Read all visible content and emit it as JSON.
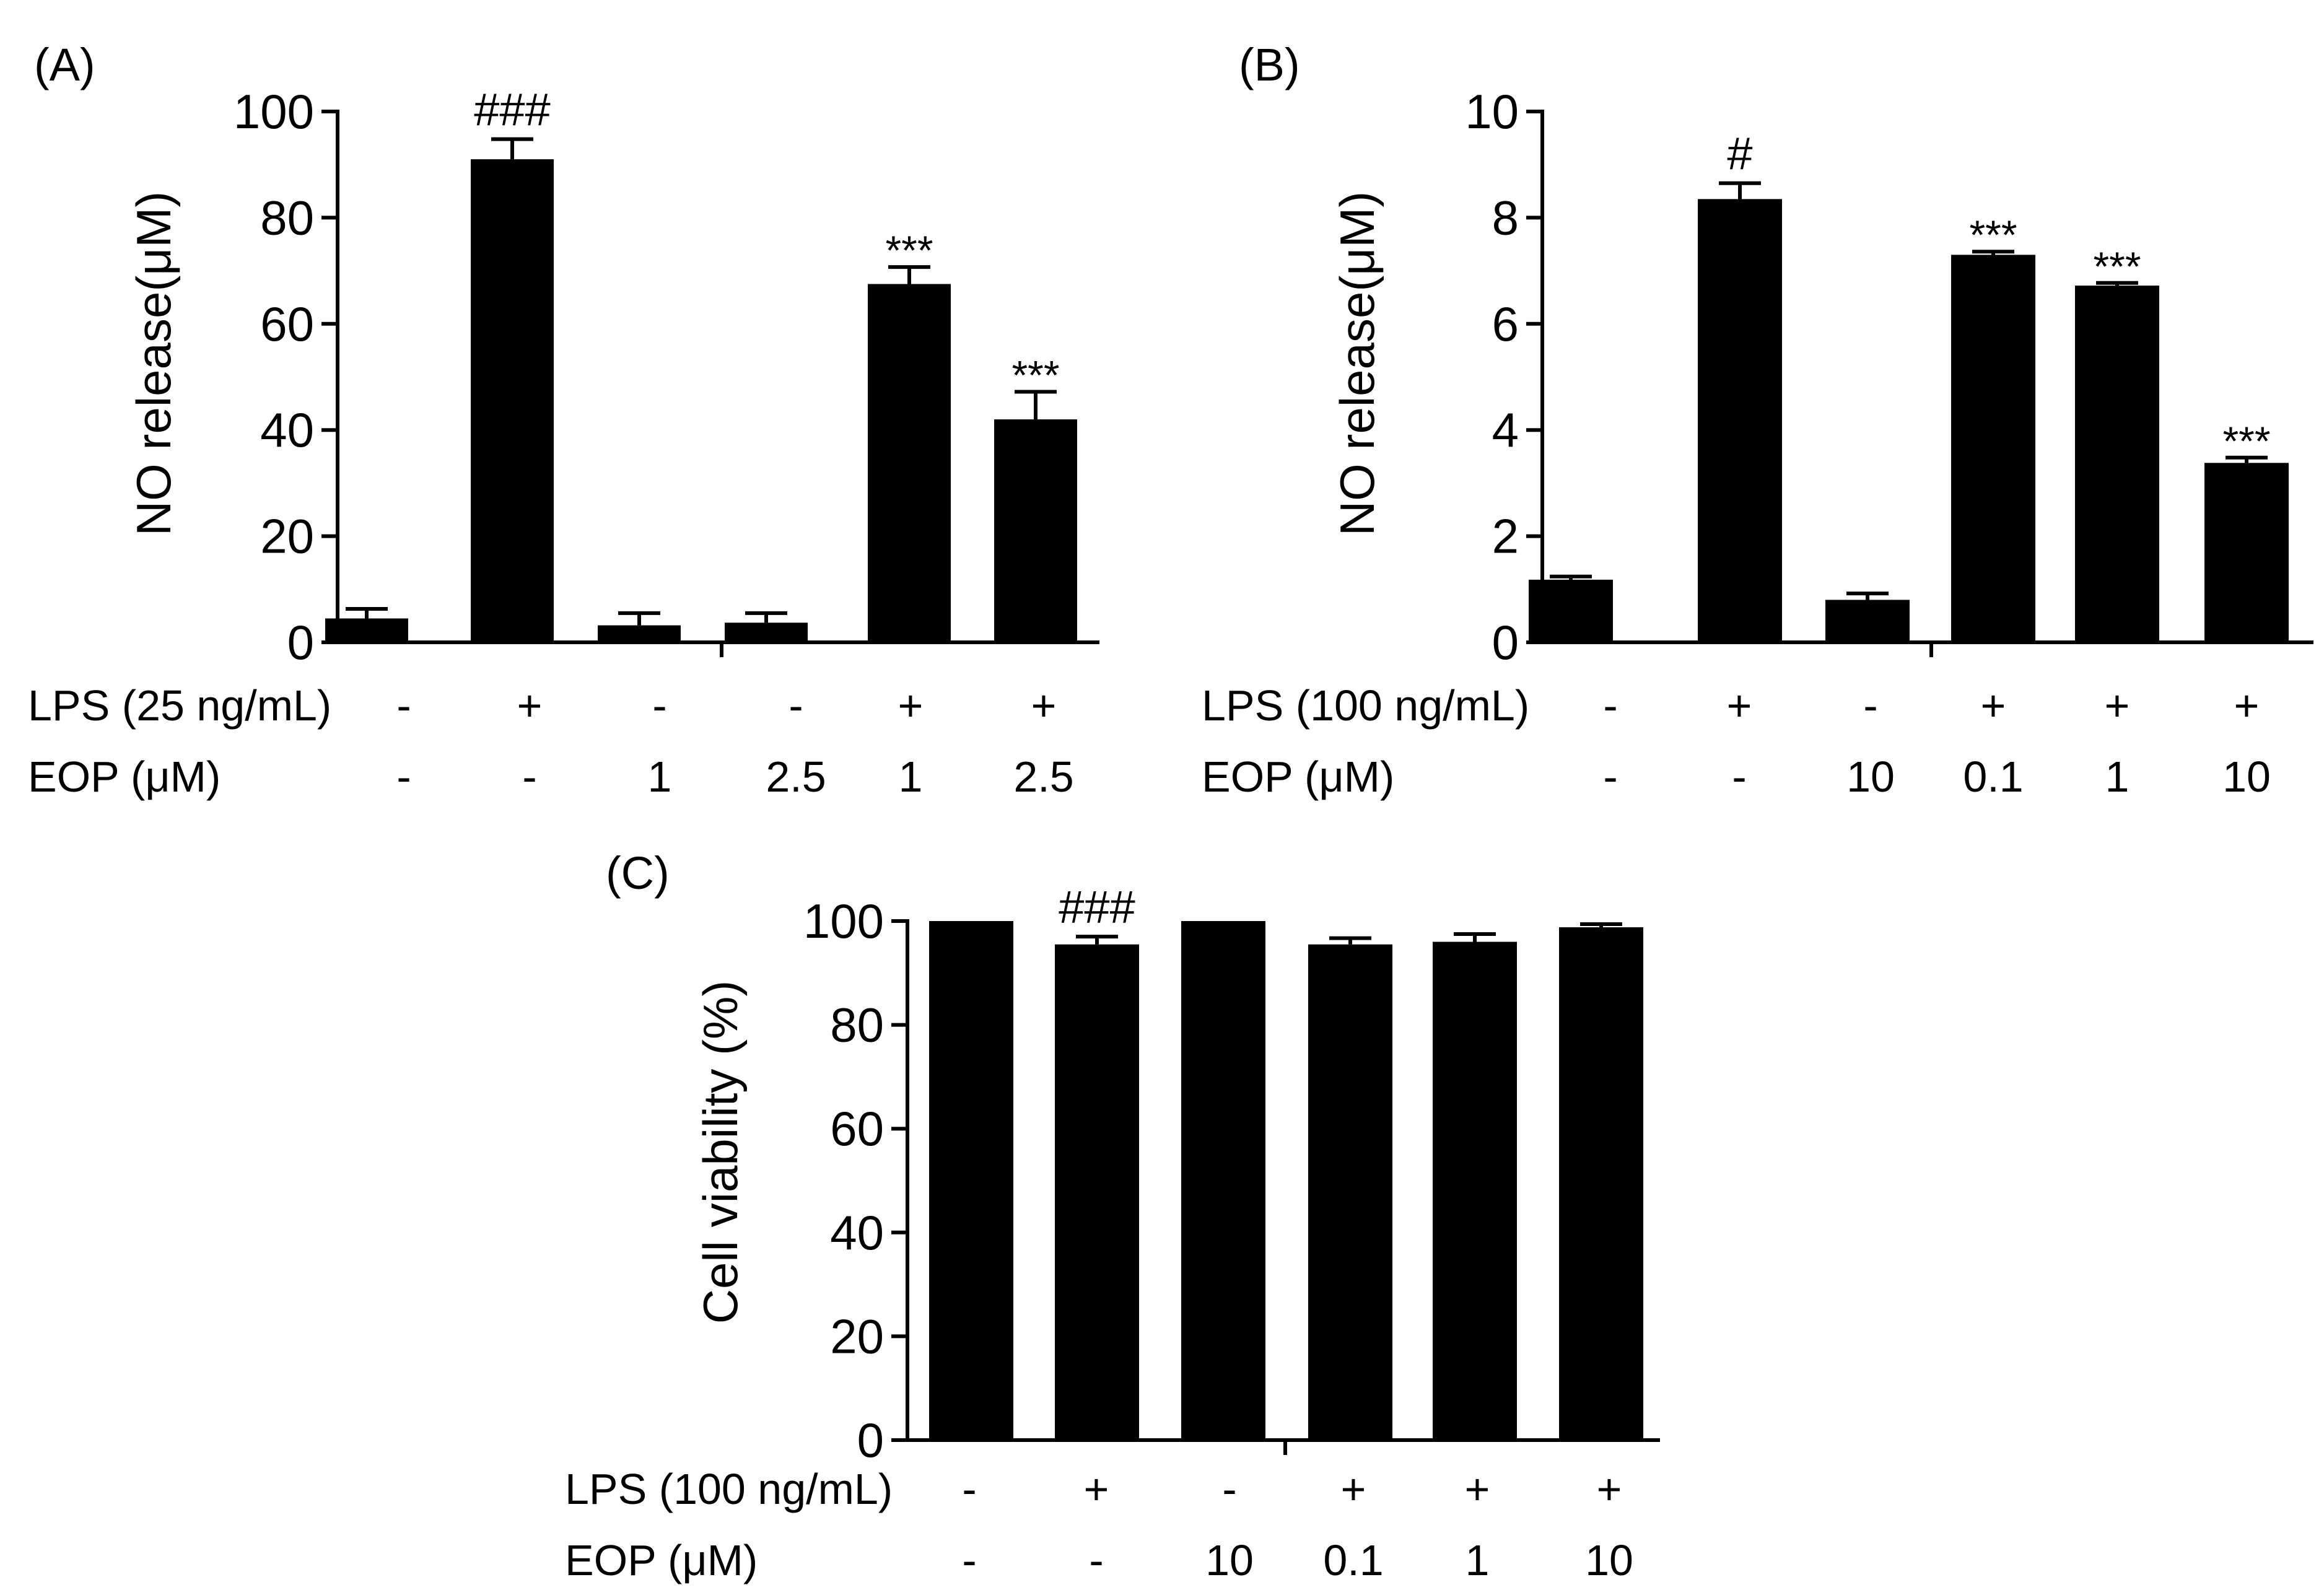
{
  "colors": {
    "bar": "#000000",
    "axis": "#000000",
    "background": "#ffffff"
  },
  "chart_data": [
    {
      "panel": "(A)",
      "type": "bar",
      "ylabel": "NO release(μM)",
      "ylim": [
        0,
        100
      ],
      "yticks": [
        0,
        20,
        40,
        60,
        80,
        100
      ],
      "values": [
        4.5,
        91,
        3.2,
        3.7,
        67.5,
        42
      ],
      "errors": [
        1.8,
        3.8,
        2.3,
        1.8,
        3.2,
        5.2
      ],
      "annotations": [
        "",
        "###",
        "",
        "",
        "***",
        "***"
      ],
      "grid": false,
      "legend": "none",
      "rows": [
        {
          "label": "LPS (25 ng/mL)",
          "values": [
            "-",
            "+",
            "-",
            "-",
            "+",
            "+"
          ]
        },
        {
          "label": "EOP (μM)",
          "values": [
            "-",
            "-",
            "1",
            "2.5",
            "1",
            "2.5"
          ]
        }
      ]
    },
    {
      "panel": "(B)",
      "type": "bar",
      "ylabel": "NO release(μM)",
      "ylim": [
        0,
        10
      ],
      "yticks": [
        0,
        2,
        4,
        6,
        8,
        10
      ],
      "values": [
        1.18,
        8.35,
        0.8,
        7.3,
        6.72,
        3.38
      ],
      "errors": [
        0.06,
        0.3,
        0.12,
        0.06,
        0.05,
        0.1
      ],
      "annotations": [
        "",
        "#",
        "",
        "***",
        "***",
        "***"
      ],
      "grid": false,
      "legend": "none",
      "rows": [
        {
          "label": "LPS (100 ng/mL)",
          "values": [
            "-",
            "+",
            "-",
            "+",
            "+",
            "+"
          ]
        },
        {
          "label": "EOP (μM)",
          "values": [
            "-",
            "-",
            "10",
            "0.1",
            "1",
            "10"
          ]
        }
      ]
    },
    {
      "panel": "(C)",
      "type": "bar",
      "ylabel": "Cell viability (%)",
      "ylim": [
        0,
        100
      ],
      "yticks": [
        0,
        20,
        40,
        60,
        80,
        100
      ],
      "values": [
        100,
        95.5,
        100,
        95.5,
        96,
        98.8
      ],
      "errors": [
        0,
        1.5,
        0,
        1.2,
        1.5,
        0.6
      ],
      "annotations": [
        "",
        "###",
        "",
        "",
        "",
        ""
      ],
      "grid": false,
      "legend": "none",
      "rows": [
        {
          "label": "LPS (100 ng/mL)",
          "values": [
            "-",
            "+",
            "-",
            "+",
            "+",
            "+"
          ]
        },
        {
          "label": "EOP (μM)",
          "values": [
            "-",
            "-",
            "10",
            "0.1",
            "1",
            "10"
          ]
        }
      ]
    }
  ]
}
